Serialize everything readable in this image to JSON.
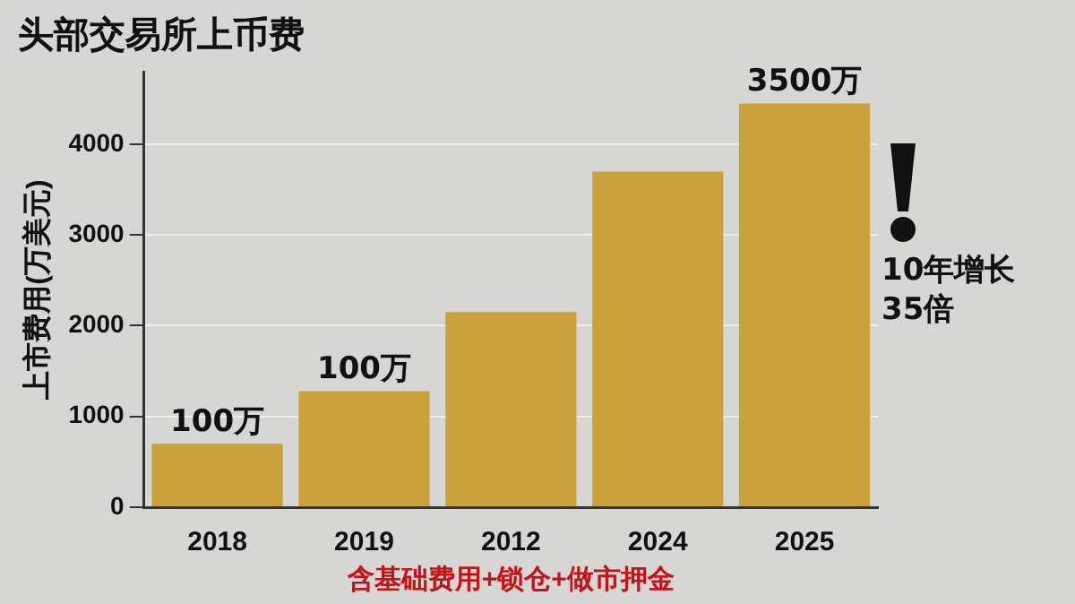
{
  "chart_data": {
    "type": "bar",
    "title": "头部交易所上币费",
    "ylabel": "上市费用(万美元)",
    "xlabel": "含基础费用+锁仓+做市押金",
    "categories": [
      "2018",
      "2019",
      "2012",
      "2024",
      "2025"
    ],
    "values": [
      700,
      1280,
      2150,
      3700,
      4450
    ],
    "color": "#c9a23e",
    "ylim": [
      0,
      4800
    ],
    "yticks": [
      0,
      1000,
      2000,
      3000,
      4000
    ],
    "grid": "y",
    "legend": false,
    "annotations": [
      "10年增长\n35倍",
      {
        "text": "100万",
        "x": "2018",
        "y": 700
      },
      {
        "text": "100万",
        "x": "2019",
        "y": 1280
      },
      {
        "text": "3500万",
        "x": "2025",
        "y": 4450
      }
    ]
  }
}
